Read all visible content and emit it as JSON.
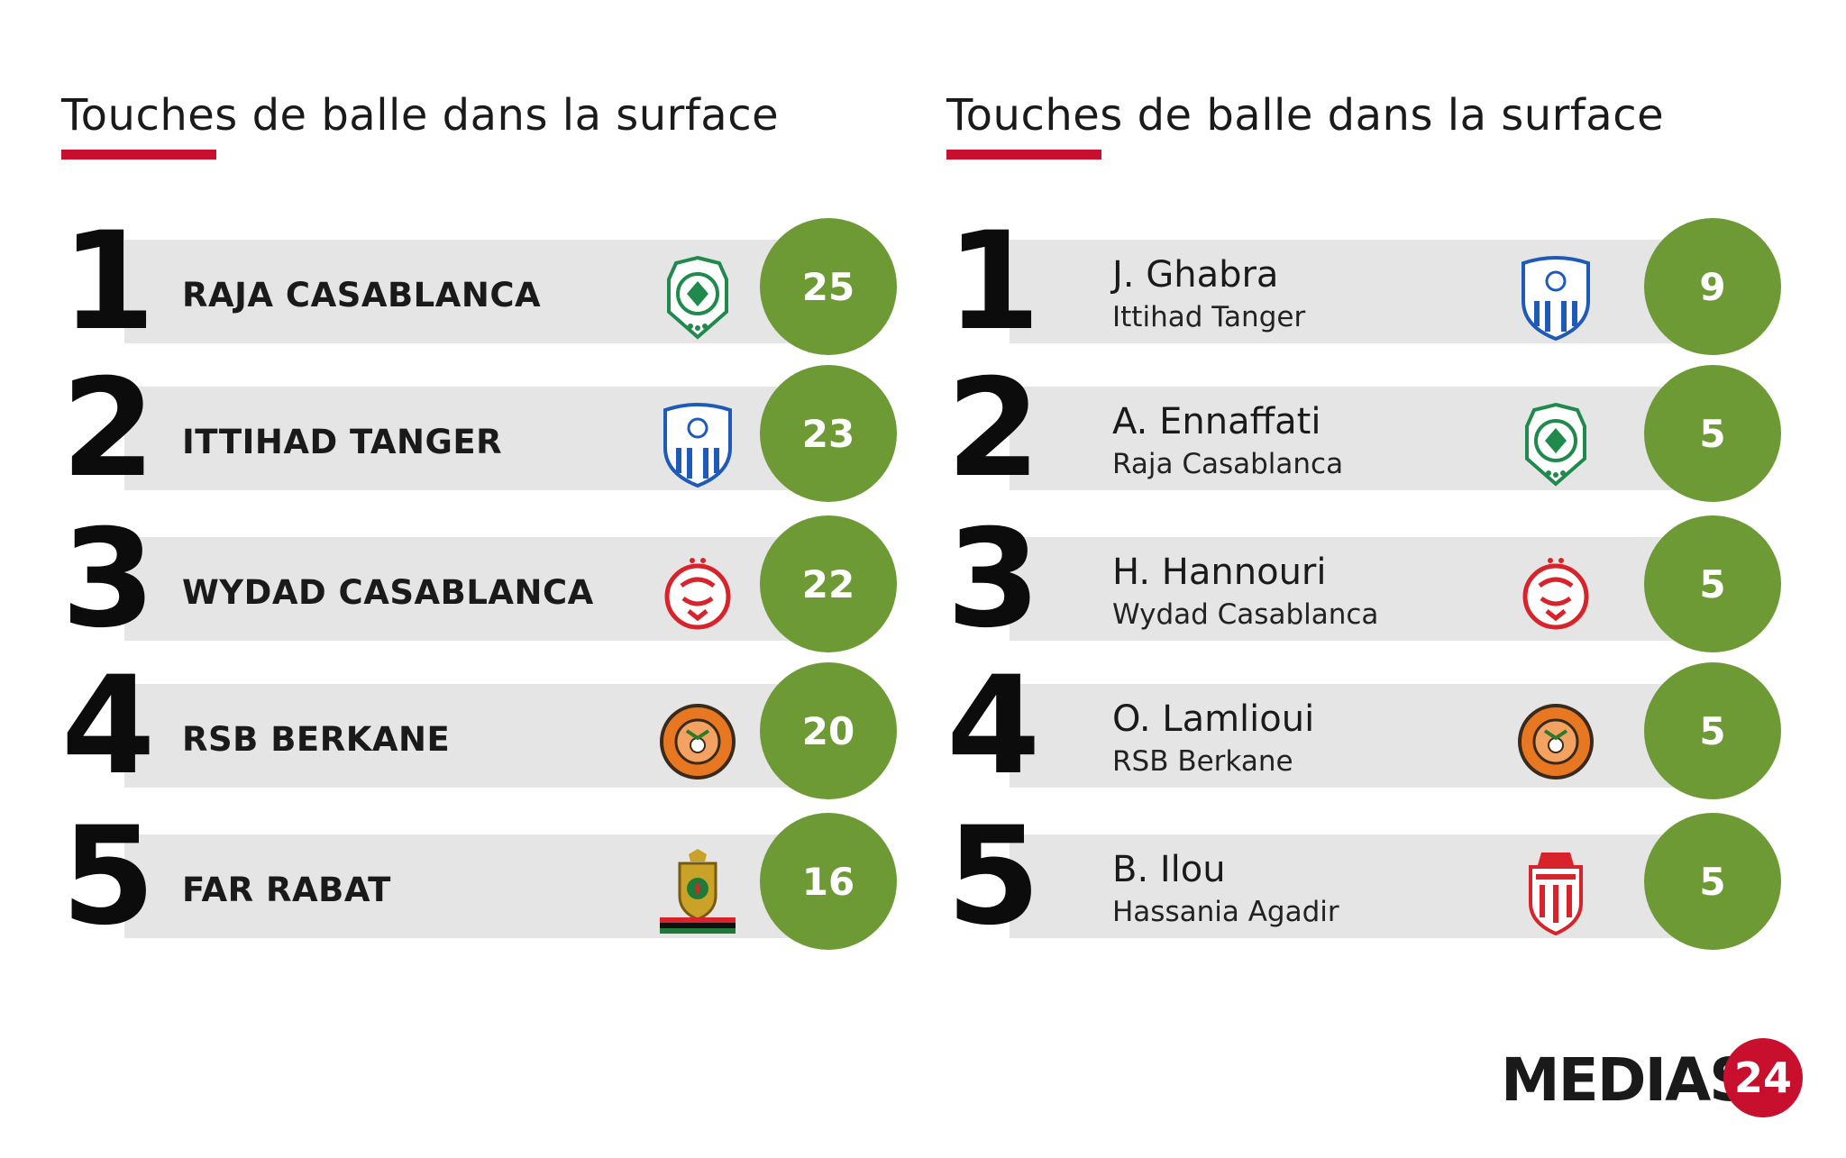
{
  "teams_panel": {
    "title": "Touches de balle dans la surface",
    "rows": [
      {
        "rank": "1",
        "team": "RAJA CASABLANCA",
        "value": "25",
        "logo": "raja-casablanca-crest-icon"
      },
      {
        "rank": "2",
        "team": "ITTIHAD TANGER",
        "value": "23",
        "logo": "ittihad-tanger-crest-icon"
      },
      {
        "rank": "3",
        "team": "WYDAD CASABLANCA",
        "value": "22",
        "logo": "wydad-casablanca-crest-icon"
      },
      {
        "rank": "4",
        "team": "RSB BERKANE",
        "value": "20",
        "logo": "rsb-berkane-crest-icon"
      },
      {
        "rank": "5",
        "team": "FAR RABAT",
        "value": "16",
        "logo": "far-rabat-crest-icon"
      }
    ]
  },
  "players_panel": {
    "title": "Touches de balle dans la surface",
    "rows": [
      {
        "rank": "1",
        "player": "J. Ghabra",
        "team": "Ittihad Tanger",
        "value": "9",
        "logo": "ittihad-tanger-crest-icon"
      },
      {
        "rank": "2",
        "player": "A. Ennaffati",
        "team": "Raja Casablanca",
        "value": "5",
        "logo": "raja-casablanca-crest-icon"
      },
      {
        "rank": "3",
        "player": "H. Hannouri",
        "team": "Wydad Casablanca",
        "value": "5",
        "logo": "wydad-casablanca-crest-icon"
      },
      {
        "rank": "4",
        "player": "O. Lamlioui",
        "team": "RSB Berkane",
        "value": "5",
        "logo": "rsb-berkane-crest-icon"
      },
      {
        "rank": "5",
        "player": "B. Ilou",
        "team": "Hassania Agadir",
        "value": "5",
        "logo": "hassania-agadir-crest-icon"
      }
    ]
  },
  "brand": {
    "text": "MEDIAS",
    "mark": "24"
  },
  "colors": {
    "accent": "#c8102e",
    "value_circle": "#6e9a36",
    "bar": "#e5e5e5",
    "text": "#1a1a1a"
  }
}
